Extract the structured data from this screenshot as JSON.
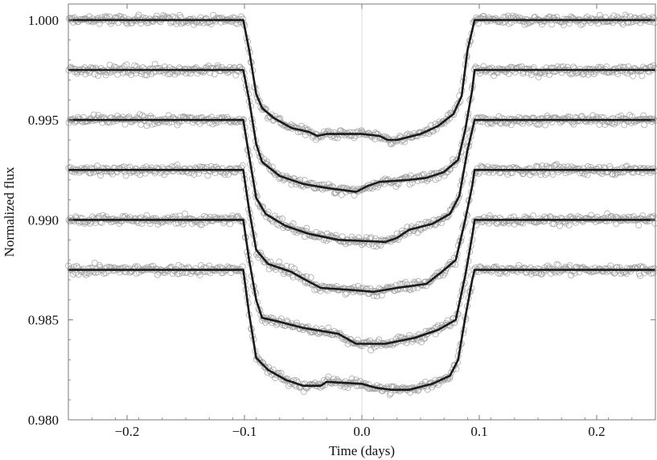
{
  "chart_data": {
    "type": "scatter",
    "xlabel": "Time (days)",
    "ylabel": "Normalized flux",
    "xlim": [
      -0.25,
      0.25
    ],
    "ylim": [
      0.98,
      1.0008
    ],
    "xticks": [
      -0.2,
      -0.1,
      0.0,
      0.1,
      0.2
    ],
    "xtick_labels": [
      "−0.2",
      "−0.1",
      "0.0",
      "0.1",
      "0.2"
    ],
    "yticks": [
      0.98,
      0.985,
      0.99,
      0.995,
      1.0
    ],
    "ytick_labels": [
      "0.980",
      "0.985",
      "0.990",
      "0.995",
      "1.000"
    ],
    "grid": "zero lines only",
    "colors": {
      "points": "#9a9a9a",
      "model": "#1a1a1a",
      "frame": "#7a7a7a",
      "zero_line": "#d8d8d8"
    },
    "transit_shape": {
      "ingress": [
        -0.101,
        -0.088
      ],
      "egress": [
        0.083,
        0.096
      ]
    },
    "series": [
      {
        "baseline": 1.0,
        "depth_center": 0.0057,
        "scatter": 0.0002,
        "model": [
          [
            -0.25,
            1.0
          ],
          [
            -0.101,
            1.0
          ],
          [
            -0.096,
            0.9985
          ],
          [
            -0.09,
            0.9963
          ],
          [
            -0.085,
            0.9956
          ],
          [
            -0.075,
            0.9951
          ],
          [
            -0.06,
            0.9946
          ],
          [
            -0.045,
            0.9944
          ],
          [
            -0.038,
            0.9942
          ],
          [
            -0.03,
            0.9943
          ],
          [
            0.0,
            0.9943
          ],
          [
            0.015,
            0.9942
          ],
          [
            0.022,
            0.994
          ],
          [
            0.03,
            0.994
          ],
          [
            0.05,
            0.9943
          ],
          [
            0.065,
            0.9947
          ],
          [
            0.078,
            0.9953
          ],
          [
            0.085,
            0.9962
          ],
          [
            0.09,
            0.9985
          ],
          [
            0.096,
            1.0
          ],
          [
            0.25,
            1.0
          ]
        ]
      },
      {
        "baseline": 0.9975,
        "depth_center": 0.0057,
        "scatter": 0.0002,
        "model": [
          [
            -0.25,
            0.9975
          ],
          [
            -0.101,
            0.9975
          ],
          [
            -0.096,
            0.996
          ],
          [
            -0.09,
            0.9938
          ],
          [
            -0.085,
            0.9929
          ],
          [
            -0.07,
            0.9922
          ],
          [
            -0.05,
            0.9918
          ],
          [
            -0.03,
            0.9916
          ],
          [
            -0.005,
            0.9914
          ],
          [
            0.005,
            0.9917
          ],
          [
            0.015,
            0.9919
          ],
          [
            0.04,
            0.992
          ],
          [
            0.055,
            0.9921
          ],
          [
            0.07,
            0.9924
          ],
          [
            0.082,
            0.993
          ],
          [
            0.088,
            0.9945
          ],
          [
            0.094,
            0.9965
          ],
          [
            0.096,
            0.9975
          ],
          [
            0.25,
            0.9975
          ]
        ]
      },
      {
        "baseline": 0.995,
        "depth_center": 0.0061,
        "scatter": 0.0002,
        "model": [
          [
            -0.25,
            0.995
          ],
          [
            -0.101,
            0.995
          ],
          [
            -0.096,
            0.9932
          ],
          [
            -0.09,
            0.9911
          ],
          [
            -0.082,
            0.9903
          ],
          [
            -0.065,
            0.9897
          ],
          [
            -0.045,
            0.9893
          ],
          [
            -0.02,
            0.989
          ],
          [
            0.02,
            0.9889
          ],
          [
            0.03,
            0.9891
          ],
          [
            0.04,
            0.9895
          ],
          [
            0.06,
            0.9898
          ],
          [
            0.075,
            0.9903
          ],
          [
            0.083,
            0.9912
          ],
          [
            0.09,
            0.9935
          ],
          [
            0.096,
            0.995
          ],
          [
            0.25,
            0.995
          ]
        ]
      },
      {
        "baseline": 0.9925,
        "depth_center": 0.0061,
        "scatter": 0.0002,
        "model": [
          [
            -0.25,
            0.9925
          ],
          [
            -0.101,
            0.9925
          ],
          [
            -0.096,
            0.9905
          ],
          [
            -0.09,
            0.9885
          ],
          [
            -0.08,
            0.9878
          ],
          [
            -0.06,
            0.9874
          ],
          [
            -0.048,
            0.987
          ],
          [
            -0.035,
            0.9866
          ],
          [
            -0.01,
            0.9865
          ],
          [
            0.01,
            0.9864
          ],
          [
            0.03,
            0.9866
          ],
          [
            0.055,
            0.9868
          ],
          [
            0.068,
            0.9874
          ],
          [
            0.08,
            0.988
          ],
          [
            0.088,
            0.99
          ],
          [
            0.094,
            0.9917
          ],
          [
            0.096,
            0.9925
          ],
          [
            0.25,
            0.9925
          ]
        ]
      },
      {
        "baseline": 0.99,
        "depth_center": 0.0061,
        "scatter": 0.0002,
        "model": [
          [
            -0.25,
            0.99
          ],
          [
            -0.101,
            0.99
          ],
          [
            -0.096,
            0.988
          ],
          [
            -0.09,
            0.986
          ],
          [
            -0.085,
            0.9851
          ],
          [
            -0.07,
            0.9849
          ],
          [
            -0.05,
            0.9846
          ],
          [
            -0.02,
            0.9843
          ],
          [
            -0.005,
            0.9838
          ],
          [
            0.02,
            0.9838
          ],
          [
            0.045,
            0.9841
          ],
          [
            0.065,
            0.9845
          ],
          [
            0.08,
            0.985
          ],
          [
            0.088,
            0.9872
          ],
          [
            0.094,
            0.9892
          ],
          [
            0.096,
            0.99
          ],
          [
            0.25,
            0.99
          ]
        ]
      },
      {
        "baseline": 0.9875,
        "depth_center": 0.0059,
        "scatter": 0.0002,
        "model": [
          [
            -0.25,
            0.9875
          ],
          [
            -0.101,
            0.9875
          ],
          [
            -0.096,
            0.9853
          ],
          [
            -0.09,
            0.9831
          ],
          [
            -0.08,
            0.9825
          ],
          [
            -0.065,
            0.982
          ],
          [
            -0.05,
            0.9817
          ],
          [
            -0.035,
            0.9817
          ],
          [
            -0.03,
            0.9819
          ],
          [
            0.0,
            0.9818
          ],
          [
            0.012,
            0.9816
          ],
          [
            0.025,
            0.9815
          ],
          [
            0.04,
            0.9815
          ],
          [
            0.06,
            0.9818
          ],
          [
            0.075,
            0.9822
          ],
          [
            0.082,
            0.983
          ],
          [
            0.088,
            0.9851
          ],
          [
            0.094,
            0.987
          ],
          [
            0.096,
            0.9875
          ],
          [
            0.25,
            0.9875
          ]
        ]
      }
    ]
  }
}
